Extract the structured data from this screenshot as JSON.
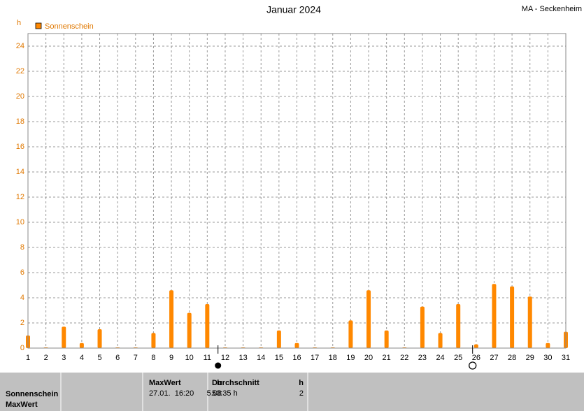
{
  "chart_data": {
    "type": "bar",
    "title": "Januar 2024",
    "station": "MA - Seckenheim",
    "ylabel": "h",
    "x": [
      1,
      2,
      3,
      4,
      5,
      6,
      7,
      8,
      9,
      10,
      11,
      12,
      13,
      14,
      15,
      16,
      17,
      18,
      19,
      20,
      21,
      22,
      23,
      24,
      25,
      26,
      27,
      28,
      29,
      30,
      31
    ],
    "series": [
      {
        "name": "Sonnenschein",
        "color": "#ff8800",
        "values": [
          1.0,
          0,
          1.7,
          0.4,
          1.5,
          0,
          0,
          1.2,
          4.6,
          2.8,
          3.5,
          0,
          0,
          0,
          1.4,
          0.4,
          0,
          0,
          2.2,
          4.6,
          1.4,
          0,
          3.3,
          1.2,
          3.5,
          0.3,
          5.1,
          4.9,
          4.1,
          0.4,
          1.3
        ]
      }
    ],
    "xlim": [
      1,
      31
    ],
    "xticks": [
      1,
      2,
      3,
      4,
      5,
      6,
      7,
      8,
      9,
      10,
      11,
      12,
      13,
      14,
      15,
      16,
      17,
      18,
      19,
      20,
      21,
      22,
      23,
      24,
      25,
      26,
      27,
      28,
      29,
      30,
      31
    ],
    "ylim": [
      0,
      25
    ],
    "yticks": [
      0,
      2,
      4,
      6,
      8,
      10,
      12,
      14,
      16,
      18,
      20,
      22,
      24
    ],
    "grid": true,
    "full_moon": 11.6,
    "new_moon": 25.8
  },
  "summary": {
    "row_labels": [
      "Sonnenschein",
      "MaxWert"
    ],
    "columns": [
      {
        "header": "MaxWert",
        "unit": "h",
        "cells": [
          "27.01.  16:20",
          "5.08"
        ]
      },
      {
        "header": "Durchschnitt",
        "unit": "h",
        "cells": [
          "50:35 h",
          "2"
        ]
      }
    ]
  }
}
